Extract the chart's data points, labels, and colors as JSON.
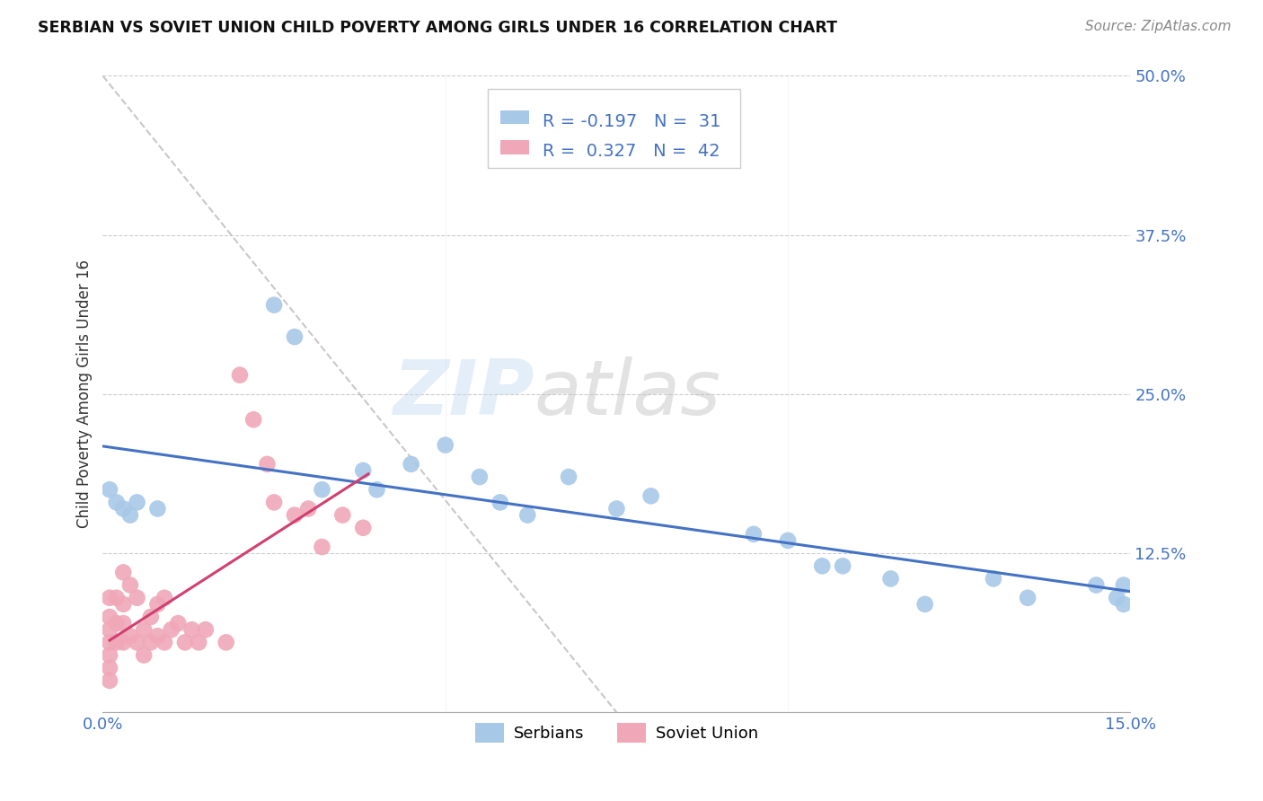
{
  "title": "SERBIAN VS SOVIET UNION CHILD POVERTY AMONG GIRLS UNDER 16 CORRELATION CHART",
  "source": "Source: ZipAtlas.com",
  "ylabel": "Child Poverty Among Girls Under 16",
  "xlim": [
    0.0,
    0.15
  ],
  "ylim": [
    0.0,
    0.5
  ],
  "yticks": [
    0.0,
    0.125,
    0.25,
    0.375,
    0.5
  ],
  "ytick_labels": [
    "",
    "12.5%",
    "25.0%",
    "37.5%",
    "50.0%"
  ],
  "xticks": [
    0.0,
    0.15
  ],
  "xtick_labels": [
    "0.0%",
    "15.0%"
  ],
  "background_color": "#ffffff",
  "grid_color": "#cccccc",
  "watermark_zip": "ZIP",
  "watermark_atlas": "atlas",
  "legend_r_serbian": "-0.197",
  "legend_n_serbian": "31",
  "legend_r_soviet": "0.327",
  "legend_n_soviet": "42",
  "serbian_color": "#a8c8e8",
  "soviet_color": "#f0a8b8",
  "trend_serbian_color": "#4472c4",
  "trend_soviet_color": "#d04070",
  "accent_color": "#4472c4",
  "serbians_x": [
    0.001,
    0.002,
    0.003,
    0.004,
    0.005,
    0.008,
    0.025,
    0.028,
    0.032,
    0.038,
    0.04,
    0.045,
    0.05,
    0.055,
    0.058,
    0.062,
    0.068,
    0.075,
    0.08,
    0.095,
    0.1,
    0.105,
    0.108,
    0.115,
    0.12,
    0.13,
    0.135,
    0.145,
    0.148,
    0.149,
    0.149
  ],
  "serbians_y": [
    0.175,
    0.165,
    0.16,
    0.155,
    0.165,
    0.16,
    0.32,
    0.295,
    0.175,
    0.19,
    0.175,
    0.195,
    0.21,
    0.185,
    0.165,
    0.155,
    0.185,
    0.16,
    0.17,
    0.14,
    0.135,
    0.115,
    0.115,
    0.105,
    0.085,
    0.105,
    0.09,
    0.1,
    0.09,
    0.085,
    0.1
  ],
  "soviet_x": [
    0.001,
    0.001,
    0.001,
    0.001,
    0.001,
    0.001,
    0.001,
    0.002,
    0.002,
    0.002,
    0.003,
    0.003,
    0.003,
    0.003,
    0.004,
    0.004,
    0.005,
    0.005,
    0.006,
    0.006,
    0.007,
    0.007,
    0.008,
    0.008,
    0.009,
    0.009,
    0.01,
    0.011,
    0.012,
    0.013,
    0.014,
    0.015,
    0.018,
    0.02,
    0.022,
    0.024,
    0.025,
    0.028,
    0.03,
    0.032,
    0.035,
    0.038
  ],
  "soviet_y": [
    0.09,
    0.075,
    0.065,
    0.055,
    0.045,
    0.035,
    0.025,
    0.09,
    0.07,
    0.055,
    0.11,
    0.085,
    0.07,
    0.055,
    0.1,
    0.06,
    0.09,
    0.055,
    0.065,
    0.045,
    0.075,
    0.055,
    0.085,
    0.06,
    0.09,
    0.055,
    0.065,
    0.07,
    0.055,
    0.065,
    0.055,
    0.065,
    0.055,
    0.265,
    0.23,
    0.195,
    0.165,
    0.155,
    0.16,
    0.13,
    0.155,
    0.145
  ],
  "diag_line_x": [
    0.0,
    0.075
  ],
  "diag_line_y": [
    0.5,
    0.0
  ]
}
